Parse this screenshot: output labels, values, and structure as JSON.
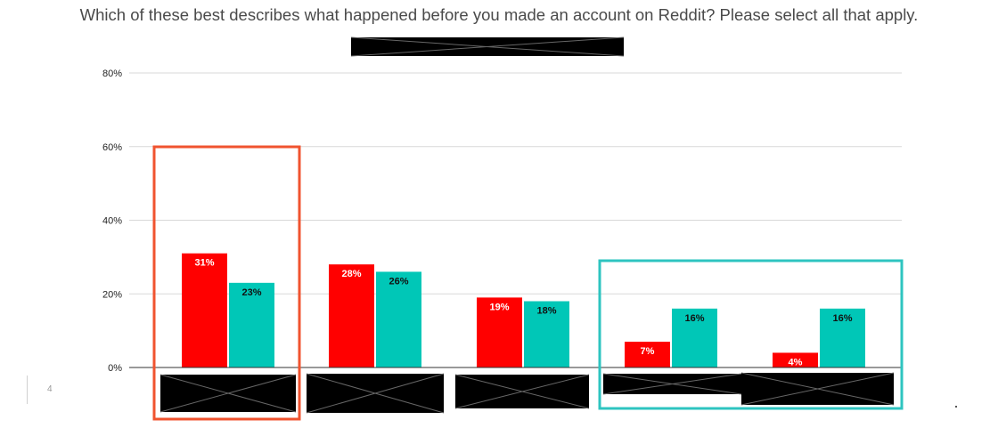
{
  "slide": {
    "title": "Which of these best describes what happened before you made an account on Reddit? Please select all that apply.",
    "page_number": "4"
  },
  "chart_data": {
    "type": "bar",
    "title": "Which of these best describes what happened before you made an account on Reddit? Please select all that apply.",
    "categories": [
      "",
      "",
      "",
      "",
      ""
    ],
    "series": [
      {
        "values": [
          31,
          28,
          19,
          7,
          4
        ],
        "color": "#ff0000"
      },
      {
        "values": [
          23,
          26,
          18,
          16,
          16
        ],
        "color": "#00c7b7"
      }
    ],
    "data_labels": [
      [
        "31%",
        "28%",
        "19%",
        "7%",
        "4%"
      ],
      [
        "23%",
        "26%",
        "18%",
        "16%",
        "16%"
      ]
    ],
    "ylim": [
      0,
      80
    ],
    "yticks": [
      0,
      20,
      40,
      60,
      80
    ],
    "ytick_labels": [
      "0%",
      "20%",
      "40%",
      "60%",
      "80%"
    ],
    "grid": true,
    "xlabel": "",
    "ylabel": "",
    "highlight_colors": {
      "first_group": "#f0532f",
      "last_groups": "#2ec4c0"
    },
    "redaction_color": "#000000"
  }
}
